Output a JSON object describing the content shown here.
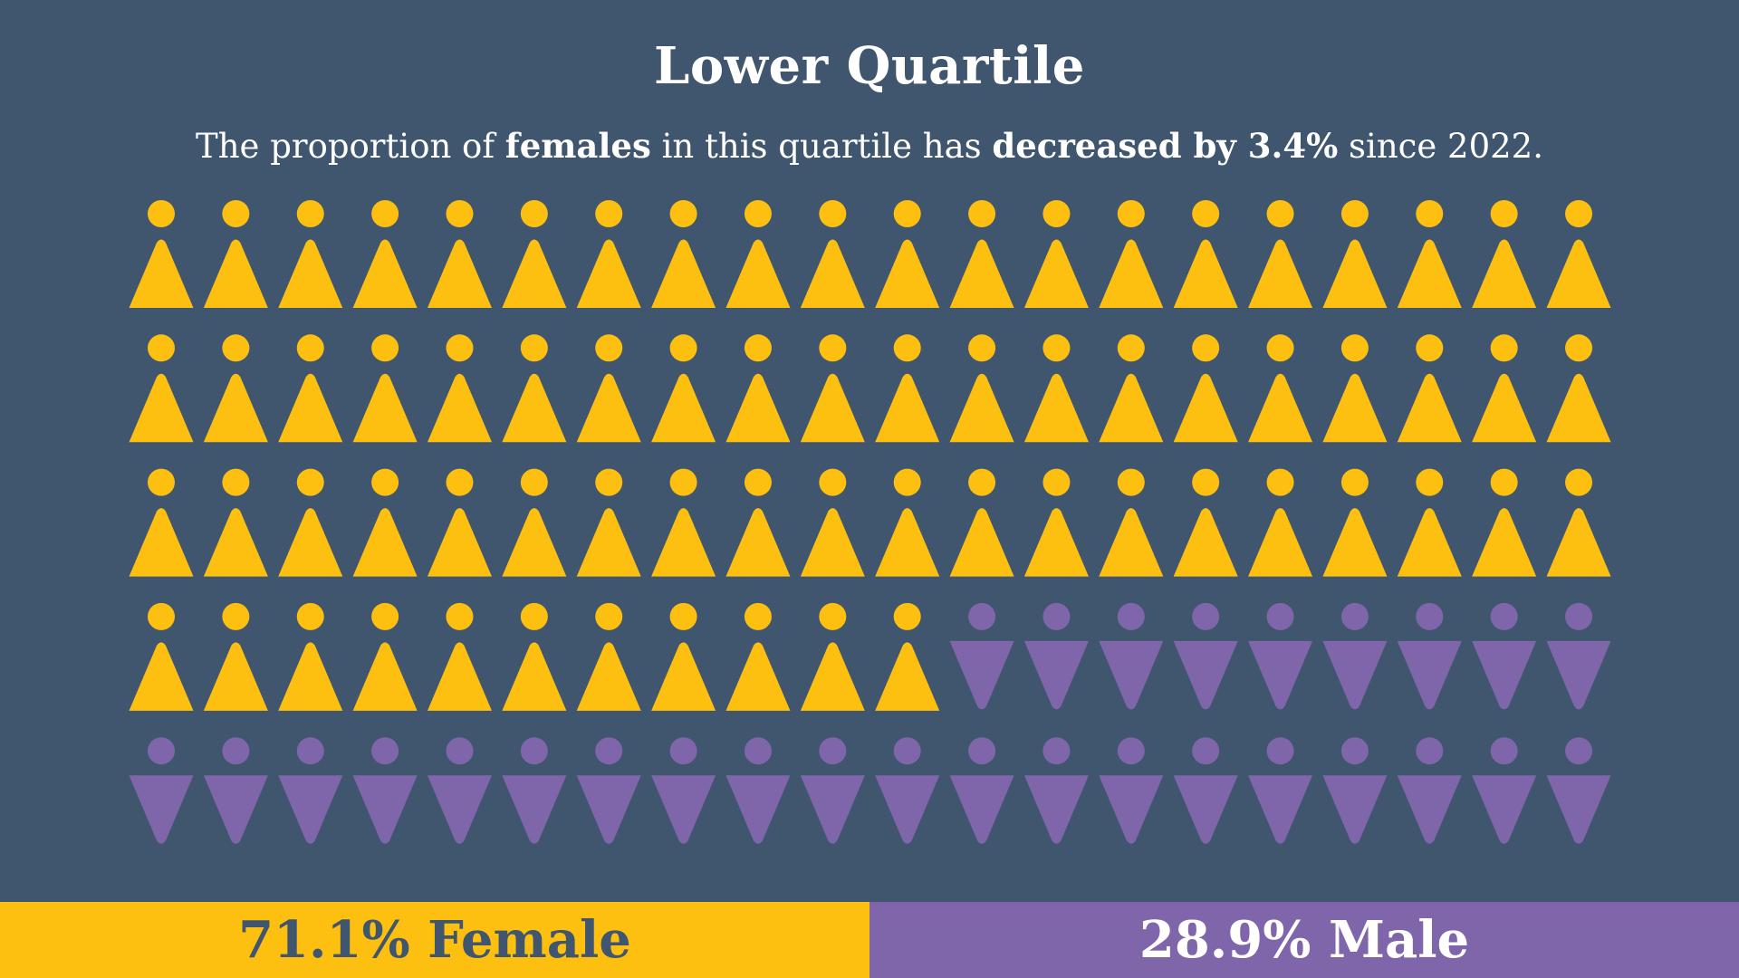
{
  "header": {
    "title": "Lower Quartile",
    "subtitle_parts": [
      {
        "text": "The proportion of ",
        "bold": false
      },
      {
        "text": "females",
        "bold": true
      },
      {
        "text": " in this quartile has ",
        "bold": false
      },
      {
        "text": "decreased by 3.4%",
        "bold": true
      },
      {
        "text": " since 2022.",
        "bold": false
      }
    ]
  },
  "footer": {
    "female_label": "71.1% Female",
    "male_label": "28.9% Male"
  },
  "colors": {
    "background": "#40566f",
    "female": "#fec010",
    "male": "#7f66aa",
    "text": "#ffffff"
  },
  "chart_data": {
    "type": "pictogram",
    "title": "Lower Quartile",
    "subtitle": "The proportion of females in this quartile has decreased by 3.4% since 2022.",
    "grid": {
      "rows": 5,
      "cols": 20,
      "total_icons": 100
    },
    "categories": [
      "Female",
      "Male"
    ],
    "icon_counts": [
      71,
      29
    ],
    "values_percent": [
      71.1,
      28.9
    ],
    "change_since_2022": {
      "category": "Female",
      "direction": "decreased",
      "value_percent": 3.4
    },
    "series": [
      {
        "name": "Female",
        "value": 71.1,
        "icons": 71,
        "color": "#fec010",
        "icon": "female-figure (upward triangle)"
      },
      {
        "name": "Male",
        "value": 28.9,
        "icons": 29,
        "color": "#7f66aa",
        "icon": "male-figure (downward triangle)"
      }
    ],
    "layout": {
      "fill_order": "row-major, female first",
      "row4_female_icons": 11,
      "row4_male_icons": 9
    }
  }
}
